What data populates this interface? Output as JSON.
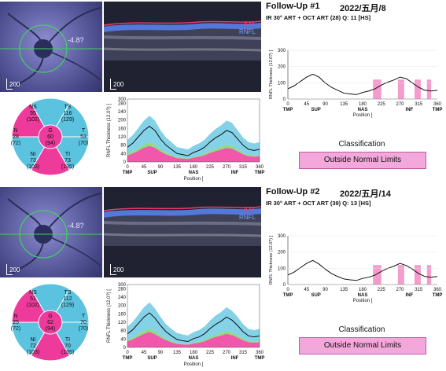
{
  "followups": [
    {
      "title": "Follow-Up #1",
      "date": "2022/五月/8",
      "scan_info": "IR 30° ART + OCT ART (28) Q: 11 [HS]",
      "fundus_angle": "-4.8?",
      "scale_label": "200 ",
      "oct_labels": {
        "ilm": "ILM",
        "rnfl": "RNFL"
      },
      "sectors": {
        "NS": {
          "name": "NS",
          "value": "55",
          "ref": "(102)"
        },
        "TS": {
          "name": "TS",
          "value": "116",
          "ref": "(129)"
        },
        "N": {
          "name": "N",
          "value": "28",
          "ref": "(72)"
        },
        "G": {
          "name": "G",
          "value": "60",
          "ref": "(94)"
        },
        "T": {
          "name": "T",
          "value": "53",
          "ref": "(70)"
        },
        "NI": {
          "name": "NI",
          "value": "73",
          "ref": "(103)"
        },
        "TI": {
          "name": "TI",
          "value": "73",
          "ref": "(135)"
        }
      },
      "classification_label": "Classification",
      "classification_value": "Outside Normal Limits",
      "main_chart": {
        "ylabel": "RNFL Thickness (12.0?) [",
        "xlabel": "Position [",
        "yticks": [
          "0",
          "20",
          "40",
          "60",
          "80",
          "100",
          "120",
          "140",
          "160",
          "180",
          "200",
          "220",
          "240",
          "260",
          "280",
          "300"
        ]
      },
      "right_chart": {
        "ylabel": "RNFL Thickness (12.0?) [",
        "xlabel": "Position [",
        "yticks": [
          "0",
          "100",
          "200",
          "300"
        ]
      }
    },
    {
      "title": "Follow-Up #2",
      "date": "2022/五月/14",
      "scan_info": "IR 30° ART + OCT ART (39) Q: 13 [HS]",
      "fundus_angle": "-4.8?",
      "scale_label": "200 ",
      "oct_labels": {
        "ilm": "ILM",
        "rnfl": "RNFL"
      },
      "sectors": {
        "NS": {
          "name": "NS",
          "value": "51",
          "ref": "(102)"
        },
        "TS": {
          "name": "TS",
          "value": "112",
          "ref": "(129)"
        },
        "N": {
          "name": "N",
          "value": "25",
          "ref": "(72)"
        },
        "G": {
          "name": "G",
          "value": "62",
          "ref": "(94)"
        },
        "T": {
          "name": "T",
          "value": "70",
          "ref": "(70)"
        },
        "NI": {
          "name": "NI",
          "value": "72",
          "ref": "(103)"
        },
        "TI": {
          "name": "TI",
          "value": "70",
          "ref": "(135)"
        }
      },
      "classification_label": "Classification",
      "classification_value": "Outside Normal Limits",
      "main_chart": {
        "ylabel": "RNFL Thickness (12.0?) [",
        "xlabel": "Position [",
        "yticks": [
          "0",
          "20",
          "40",
          "60",
          "80",
          "100",
          "120",
          "140",
          "160",
          "180",
          "200",
          "220",
          "240",
          "260",
          "280",
          "300"
        ]
      },
      "right_chart": {
        "ylabel": "RNFL Thickness (12.0?) [",
        "xlabel": "Position [",
        "yticks": [
          "0",
          "100",
          "200",
          "300"
        ]
      }
    }
  ],
  "x_axis": {
    "ticks": [
      "0",
      "45",
      "90",
      "135",
      "180",
      "225",
      "270",
      "315",
      "360"
    ],
    "regions": [
      "TMP",
      "SUP",
      "NAS",
      "INF",
      "TMP"
    ]
  },
  "colors": {
    "normal": "#5bc3df",
    "borderline": "#7ed36a",
    "outside": "#ee3a9b",
    "outside_box": "#f2a8da"
  },
  "chart_data": [
    {
      "type": "line",
      "series": [
        {
          "x": [
            0,
            15,
            30,
            45,
            60,
            75,
            90,
            105,
            120,
            135,
            150,
            165,
            180,
            195,
            210,
            225,
            240,
            255,
            270,
            285,
            300,
            315,
            330,
            345,
            360
          ],
          "values": [
            70,
            90,
            120,
            150,
            170,
            150,
            110,
            80,
            60,
            40,
            35,
            30,
            45,
            55,
            70,
            95,
            115,
            130,
            150,
            140,
            110,
            80,
            60,
            55,
            60
          ]
        }
      ],
      "xlim": [
        0,
        360
      ],
      "ylim": [
        0,
        300
      ]
    },
    {
      "type": "line",
      "series": [
        {
          "x": [
            0,
            15,
            30,
            45,
            60,
            75,
            90,
            105,
            120,
            135,
            150,
            165,
            180,
            195,
            210,
            225,
            240,
            255,
            270,
            285,
            300,
            315,
            330,
            345,
            360
          ],
          "values": [
            65,
            85,
            115,
            145,
            165,
            140,
            105,
            75,
            55,
            38,
            32,
            28,
            42,
            50,
            65,
            90,
            110,
            125,
            145,
            130,
            105,
            75,
            55,
            50,
            55
          ]
        }
      ],
      "xlim": [
        0,
        360
      ],
      "ylim": [
        0,
        300
      ]
    }
  ]
}
